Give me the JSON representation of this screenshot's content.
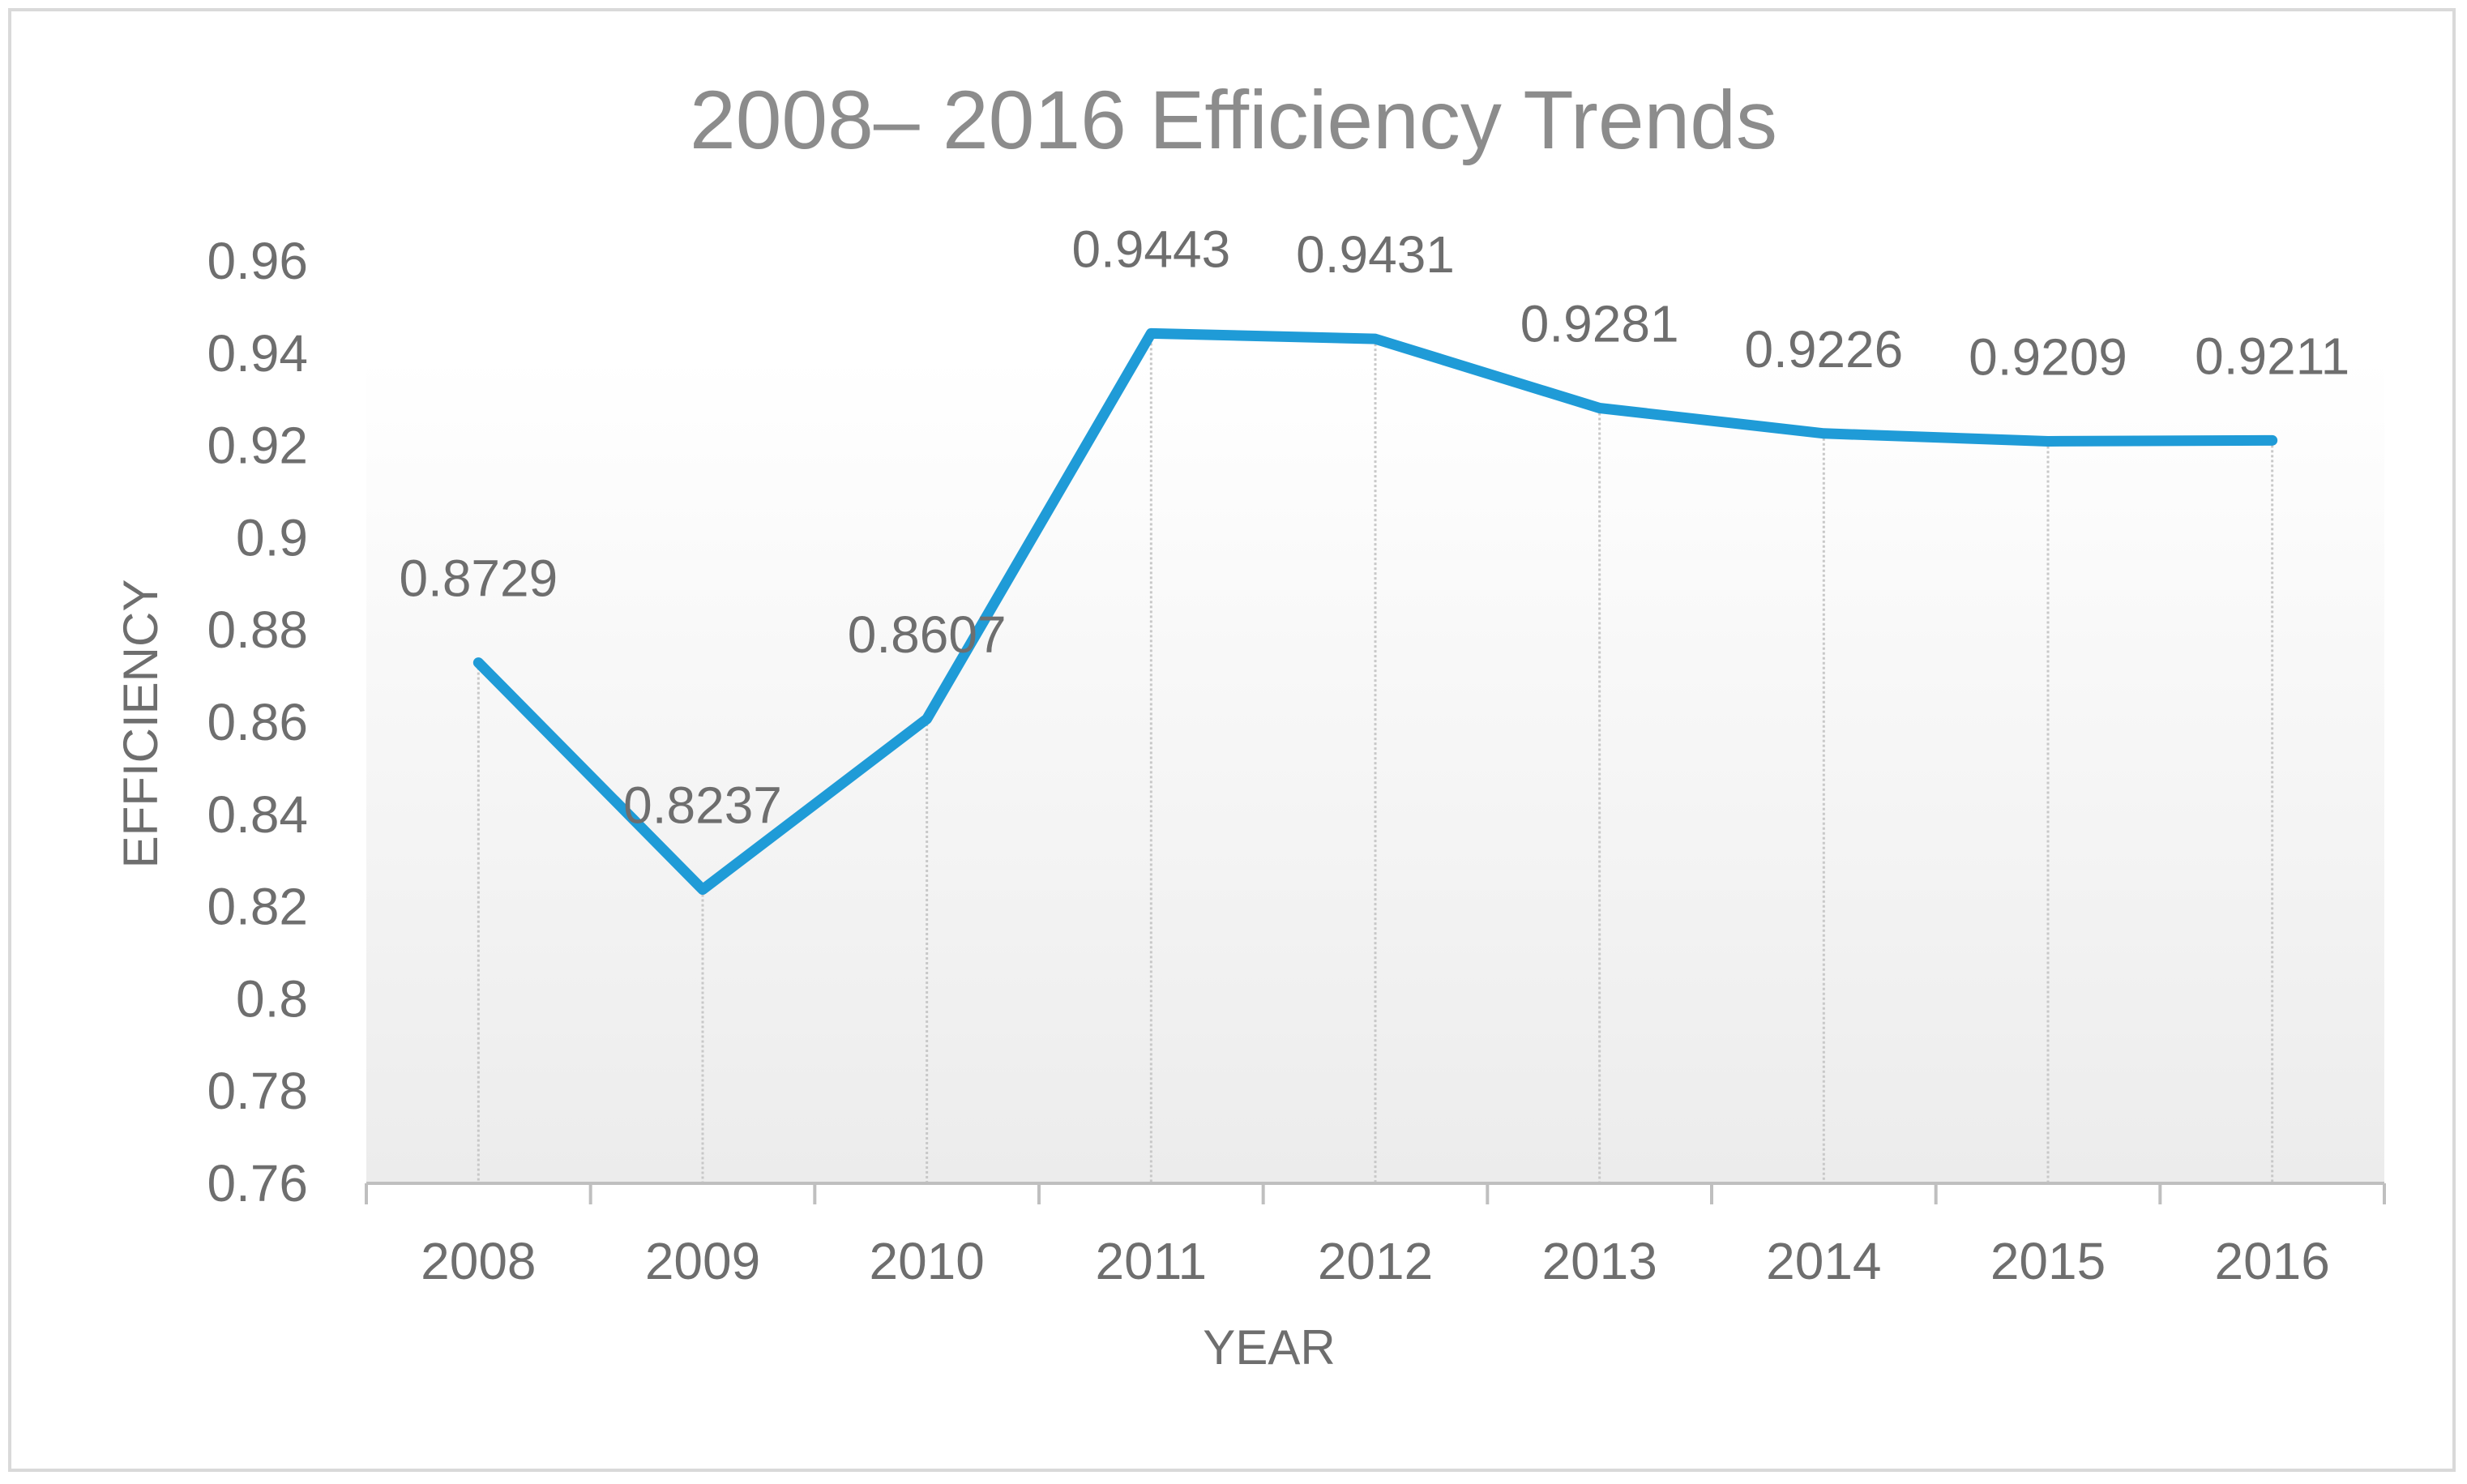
{
  "chart_data": {
    "type": "line",
    "title": "2008– 2016 Efficiency Trends",
    "xlabel": "YEAR",
    "ylabel": "EFFICIENCY",
    "categories": [
      "2008",
      "2009",
      "2010",
      "2011",
      "2012",
      "2013",
      "2014",
      "2015",
      "2016"
    ],
    "series": [
      {
        "name": "Efficiency",
        "values": [
          0.8729,
          0.8237,
          0.8607,
          0.9443,
          0.9431,
          0.9281,
          0.9226,
          0.9209,
          0.9211
        ],
        "data_labels": [
          "0.8729",
          "0.8237",
          "0.8607",
          "0.9443",
          "0.9431",
          "0.9281",
          "0.9226",
          "0.9209",
          "0.9211"
        ]
      }
    ],
    "ylim": [
      0.76,
      0.96
    ],
    "yticks": [
      0.76,
      0.78,
      0.8,
      0.82,
      0.84,
      0.86,
      0.88,
      0.9,
      0.92,
      0.94,
      0.96
    ],
    "ytick_labels": [
      "0.76",
      "0.78",
      "0.8",
      "0.82",
      "0.84",
      "0.86",
      "0.88",
      "0.9",
      "0.92",
      "0.94",
      "0.96"
    ],
    "drop_lines": true,
    "grid": false,
    "legend": "none",
    "colors": {
      "line": "#1f9bd7",
      "drop_line": "#c8c8c8",
      "axis": "#bfbfbf"
    }
  }
}
